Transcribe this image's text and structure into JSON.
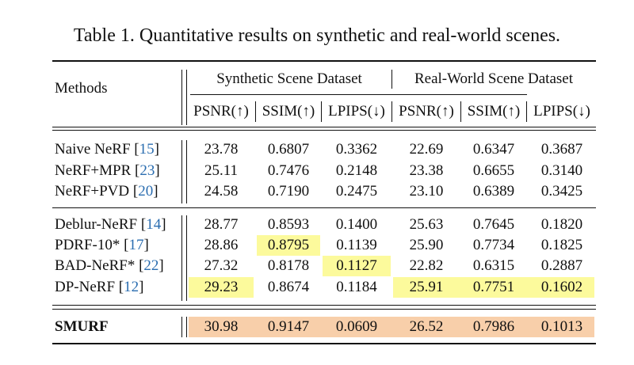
{
  "caption": "Table 1. Quantitative results on synthetic and real-world scenes.",
  "header": {
    "methods": "Methods",
    "group1": "Synthetic Scene Dataset",
    "group2": "Real-World Scene Dataset",
    "cols": [
      "PSNR(↑)",
      "SSIM(↑)",
      "LPIPS(↓)",
      "PSNR(↑)",
      "SSIM(↑)",
      "LPIPS(↓)"
    ]
  },
  "rows": [
    {
      "name": "Naive NeRF",
      "ref": "15",
      "suffix": "",
      "values": [
        "23.78",
        "0.6807",
        "0.3362",
        "22.69",
        "0.6347",
        "0.3687"
      ]
    },
    {
      "name": "NeRF+MPR",
      "ref": "23",
      "suffix": "",
      "values": [
        "25.11",
        "0.7476",
        "0.2148",
        "23.38",
        "0.6655",
        "0.3140"
      ]
    },
    {
      "name": "NeRF+PVD",
      "ref": "20",
      "suffix": "",
      "values": [
        "24.58",
        "0.7190",
        "0.2475",
        "23.10",
        "0.6389",
        "0.3425"
      ]
    },
    {
      "name": "Deblur-NeRF",
      "ref": "14",
      "suffix": "",
      "values": [
        "28.77",
        "0.8593",
        "0.1400",
        "25.63",
        "0.7645",
        "0.1820"
      ]
    },
    {
      "name": "PDRF-10*",
      "ref": "17",
      "suffix": "",
      "values": [
        "28.86",
        "0.8795",
        "0.1139",
        "25.90",
        "0.7734",
        "0.1825"
      ]
    },
    {
      "name": "BAD-NeRF*",
      "ref": "22",
      "suffix": "",
      "values": [
        "27.32",
        "0.8178",
        "0.1127",
        "22.82",
        "0.6315",
        "0.2887"
      ]
    },
    {
      "name": "DP-NeRF",
      "ref": "12",
      "suffix": "",
      "values": [
        "29.23",
        "0.8674",
        "0.1184",
        "25.91",
        "0.7751",
        "0.1602"
      ]
    },
    {
      "name": "SMURF",
      "ref": "",
      "suffix": "",
      "values": [
        "30.98",
        "0.9147",
        "0.0609",
        "26.52",
        "0.7986",
        "0.1013"
      ]
    }
  ],
  "highlight_colors": {
    "second_best": "#fcfa9c",
    "best": "#f8cfaa"
  }
}
